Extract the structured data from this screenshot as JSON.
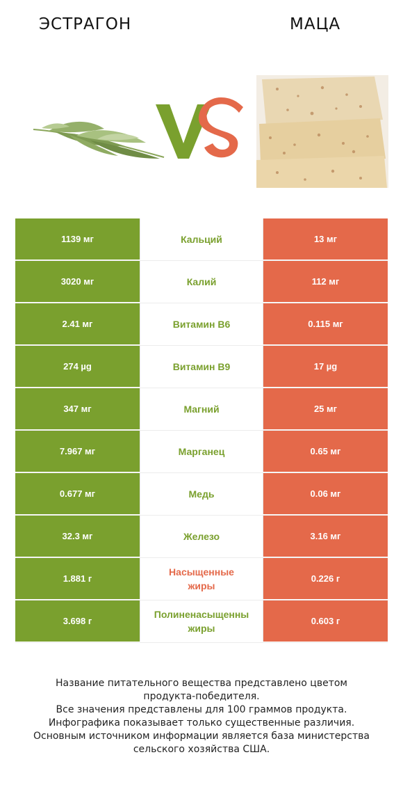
{
  "header": {
    "left_title": "ЭСТРАГОН",
    "right_title": "МАЦА",
    "vs": "VS"
  },
  "colors": {
    "left_accent": "#7aa02e",
    "right_accent": "#e4694a"
  },
  "images": {
    "left": "tarragon-sprig-image",
    "right": "matzo-sheets-image"
  },
  "rows": [
    {
      "left": "1139 мг",
      "nutrient": "Кальций",
      "right": "13 мг",
      "winner": "left"
    },
    {
      "left": "3020 мг",
      "nutrient": "Калий",
      "right": "112 мг",
      "winner": "left"
    },
    {
      "left": "2.41 мг",
      "nutrient": "Витамин B6",
      "right": "0.115 мг",
      "winner": "left"
    },
    {
      "left": "274 µg",
      "nutrient": "Витамин B9",
      "right": "17 µg",
      "winner": "left"
    },
    {
      "left": "347 мг",
      "nutrient": "Магний",
      "right": "25 мг",
      "winner": "left"
    },
    {
      "left": "7.967 мг",
      "nutrient": "Марганец",
      "right": "0.65 мг",
      "winner": "left"
    },
    {
      "left": "0.677 мг",
      "nutrient": "Медь",
      "right": "0.06 мг",
      "winner": "left"
    },
    {
      "left": "32.3 мг",
      "nutrient": "Железо",
      "right": "3.16 мг",
      "winner": "left"
    },
    {
      "left": "1.881 г",
      "nutrient_lines": [
        "Насыщенные",
        "жиры"
      ],
      "right": "0.226 г",
      "winner": "right"
    },
    {
      "left": "3.698 г",
      "nutrient_lines": [
        "Полиненасыщенны",
        "жиры"
      ],
      "right": "0.603 г",
      "winner": "left"
    }
  ],
  "footer": {
    "lines": [
      "Название питательного вещества представлено цветом",
      "продукта-победителя.",
      "Все значения представлены для 100 граммов продукта.",
      "Инфографика показывает только существенные различия.",
      "Основным источником информации является база министерства",
      "сельского хозяйства США."
    ]
  }
}
